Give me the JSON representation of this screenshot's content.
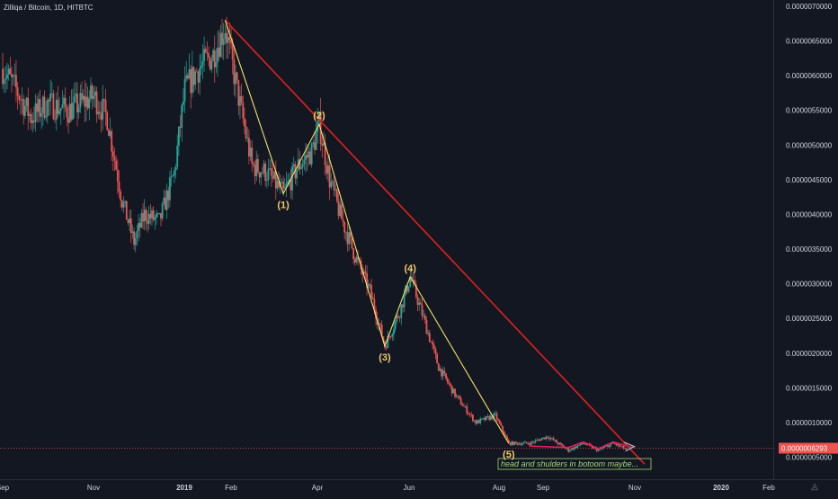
{
  "header": {
    "title": "Zilliqa / Bitcoin, 1D, HITBTC"
  },
  "logo": {
    "symbol": "◬"
  },
  "colors": {
    "background": "#131722",
    "up": "#26a69a",
    "down": "#ef5350",
    "trendline": "#e0201e",
    "wave_line": "#f2e168",
    "wave_label": "#f0c96a",
    "text": "#d1d4dc",
    "axis_text": "#d1d4dc",
    "price_tag_bg": "#ef5350",
    "annotation_text": "#a3d97a"
  },
  "chart_data": {
    "type": "candlestick",
    "title": "Zilliqa / Bitcoin, 1D, HITBTC",
    "y_axis": {
      "ticks": [
        "0.0000070000",
        "0.0000065000",
        "0.0000060000",
        "0.0000055000",
        "0.0000050000",
        "0.0000045000",
        "0.0000040000",
        "0.0000035000",
        "0.0000030000",
        "0.0000025000",
        "0.0000020000",
        "0.0000015000",
        "0.0000010000",
        "0.0000005000"
      ],
      "range": [
        4e-07,
        7e-06
      ]
    },
    "x_axis": {
      "ticks": [
        "Sep",
        "Nov",
        "2019",
        "Feb",
        "Apr",
        "Jun",
        "Aug",
        "Sep",
        "Nov",
        "2020",
        "Feb"
      ]
    },
    "last_price": "0.0000006293",
    "price_path": [
      [
        "2018-09-01",
        6.1e-06
      ],
      [
        "2018-09-10",
        5.8e-06
      ],
      [
        "2018-09-20",
        5.4e-06
      ],
      [
        "2018-10-01",
        5.6e-06
      ],
      [
        "2018-10-15",
        5.5e-06
      ],
      [
        "2018-11-01",
        5.7e-06
      ],
      [
        "2018-11-10",
        5.4e-06
      ],
      [
        "2018-11-20",
        4.2e-06
      ],
      [
        "2018-11-28",
        3.6e-06
      ],
      [
        "2018-12-05",
        4e-06
      ],
      [
        "2018-12-15",
        3.9e-06
      ],
      [
        "2018-12-25",
        4.6e-06
      ],
      [
        "2019-01-01",
        5.8e-06
      ],
      [
        "2019-01-10",
        6.1e-06
      ],
      [
        "2019-01-20",
        6.3e-06
      ],
      [
        "2019-01-28",
        6.7e-06
      ],
      [
        "2019-02-05",
        5.8e-06
      ],
      [
        "2019-02-15",
        4.7e-06
      ],
      [
        "2019-02-25",
        4.6e-06
      ],
      [
        "2019-03-08",
        4.3e-06
      ],
      [
        "2019-03-18",
        4.7e-06
      ],
      [
        "2019-03-27",
        4.9e-06
      ],
      [
        "2019-04-01",
        5.3e-06
      ],
      [
        "2019-04-08",
        4.5e-06
      ],
      [
        "2019-04-15",
        4e-06
      ],
      [
        "2019-04-25",
        3.4e-06
      ],
      [
        "2019-05-05",
        2.9e-06
      ],
      [
        "2019-05-15",
        2.1e-06
      ],
      [
        "2019-05-25",
        2.6e-06
      ],
      [
        "2019-06-01",
        3.1e-06
      ],
      [
        "2019-06-10",
        2.5e-06
      ],
      [
        "2019-06-20",
        1.8e-06
      ],
      [
        "2019-07-01",
        1.4e-06
      ],
      [
        "2019-07-15",
        1e-06
      ],
      [
        "2019-07-28",
        1.1e-06
      ],
      [
        "2019-08-06",
        7e-07
      ],
      [
        "2019-08-20",
        7e-07
      ],
      [
        "2019-09-01",
        8e-07
      ],
      [
        "2019-09-15",
        6e-07
      ],
      [
        "2019-09-25",
        7e-07
      ],
      [
        "2019-10-05",
        6e-07
      ],
      [
        "2019-10-15",
        7e-07
      ],
      [
        "2019-10-25",
        6e-07
      ]
    ],
    "drawings": {
      "trendline": [
        [
          "2019-01-28",
          6.8e-06
        ],
        [
          "2019-11-05",
          4e-07
        ]
      ],
      "wave": [
        [
          "2019-01-28",
          6.8e-06
        ],
        [
          "2019-03-08",
          4.3e-06
        ],
        [
          "2019-04-01",
          5.3e-06
        ],
        [
          "2019-05-15",
          2.1e-06
        ],
        [
          "2019-06-01",
          3.1e-06
        ],
        [
          "2019-08-06",
          7e-07
        ]
      ],
      "wave_labels": [
        {
          "text": "(1)",
          "x": "2019-03-08",
          "y": 4.3e-06
        },
        {
          "text": "(2)",
          "x": "2019-04-01",
          "y": 5.3e-06
        },
        {
          "text": "(3)",
          "x": "2019-05-15",
          "y": 2.1e-06
        },
        {
          "text": "(4)",
          "x": "2019-06-01",
          "y": 3.1e-06
        },
        {
          "text": "(5)",
          "x": "2019-08-06",
          "y": 7e-07
        }
      ],
      "projection": [
        [
          "2019-08-20",
          6.6e-07
        ],
        [
          "2019-09-15",
          6.4e-07
        ],
        [
          "2019-09-25",
          7.2e-07
        ],
        [
          "2019-10-05",
          6.2e-07
        ],
        [
          "2019-10-15",
          7.2e-07
        ],
        [
          "2019-10-28",
          6.4e-07
        ]
      ],
      "annotation": "head and shulders in botoom maybe..."
    }
  }
}
